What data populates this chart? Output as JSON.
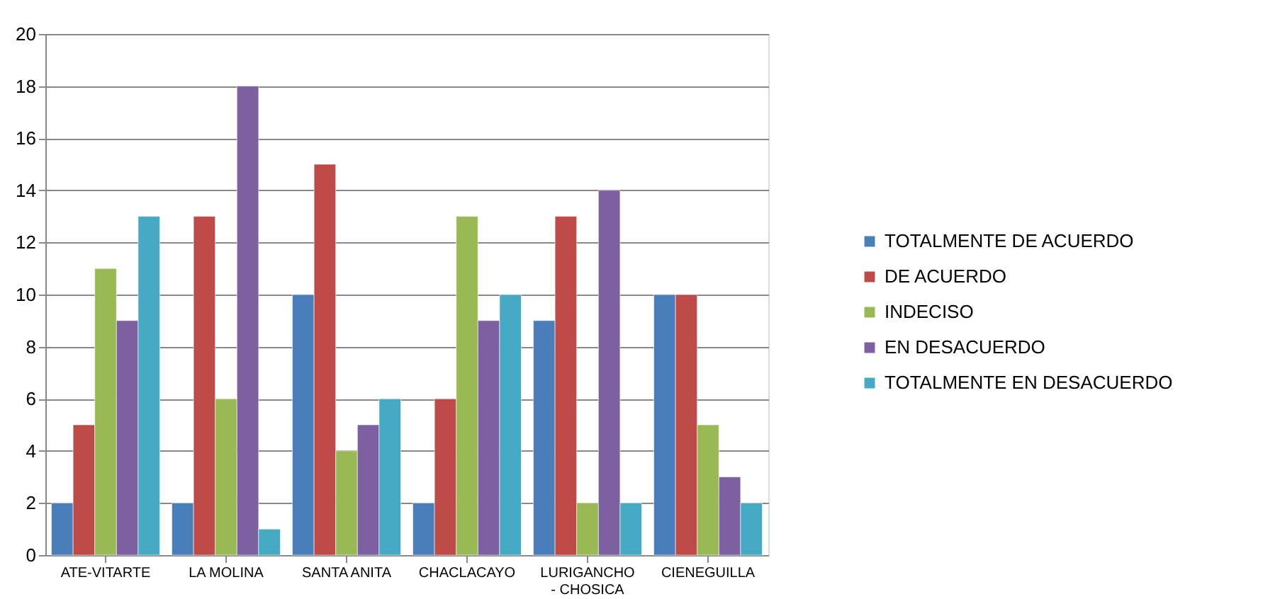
{
  "chart_data": {
    "type": "bar",
    "categories": [
      "ATE-VITARTE",
      "LA MOLINA",
      "SANTA ANITA",
      "CHACLACAYO",
      "LURIGANCHO - CHOSICA",
      "CIENEGUILLA"
    ],
    "series": [
      {
        "name": "TOTALMENTE DE ACUERDO",
        "color": "#4a7ebb",
        "values": [
          2,
          2,
          10,
          2,
          9,
          10
        ]
      },
      {
        "name": "DE ACUERDO",
        "color": "#be4b48",
        "values": [
          5,
          13,
          15,
          6,
          13,
          10
        ]
      },
      {
        "name": "INDECISO",
        "color": "#98b954",
        "values": [
          11,
          6,
          4,
          13,
          2,
          5
        ]
      },
      {
        "name": "EN DESACUERDO",
        "color": "#7d60a0",
        "values": [
          9,
          18,
          5,
          9,
          14,
          3
        ]
      },
      {
        "name": "TOTALMENTE EN DESACUERDO",
        "color": "#46aac5",
        "values": [
          13,
          1,
          6,
          10,
          2,
          2
        ]
      }
    ],
    "ylim": [
      0,
      20
    ],
    "yticks": [
      0,
      2,
      4,
      6,
      8,
      10,
      12,
      14,
      16,
      18,
      20
    ],
    "grid": "y",
    "legend": "right"
  }
}
